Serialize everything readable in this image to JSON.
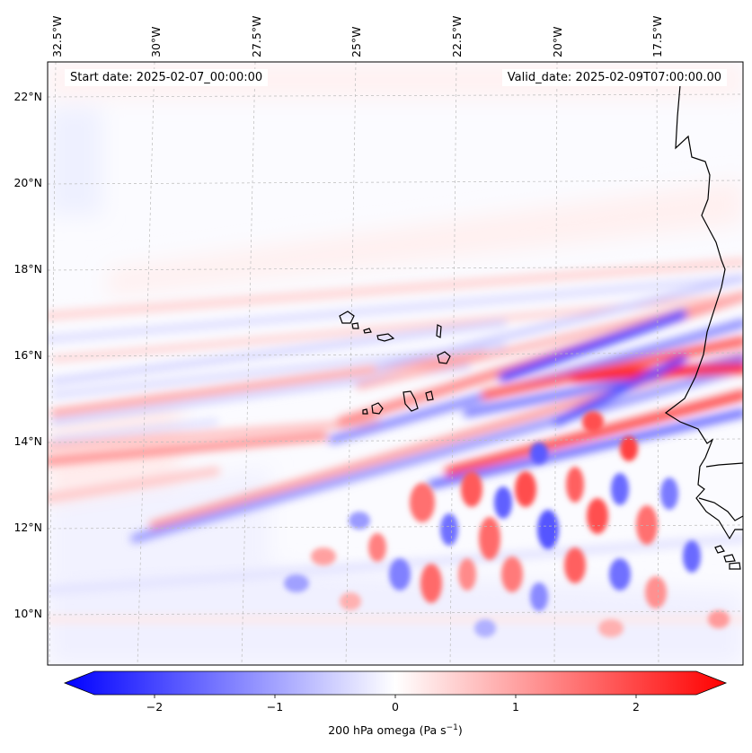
{
  "map": {
    "start_date": "Start date: 2025-02-07_00:00:00",
    "valid_date": "Valid_date: 2025-02-09T07:00:00.00",
    "lon_labels": [
      "32.5°W",
      "30°W",
      "27.5°W",
      "25°W",
      "22.5°W",
      "20°W",
      "17.5°W"
    ],
    "lat_labels": [
      "22°N",
      "20°N",
      "18°N",
      "16°N",
      "14°N",
      "12°N",
      "10°N"
    ],
    "colorbar": {
      "ticks": [
        "−2",
        "−1",
        "0",
        "1",
        "2"
      ],
      "label_text": "200 hPa omega (Pa s",
      "label_sup": "−1",
      "label_close": ")",
      "range": [
        -2.5,
        2.5
      ],
      "negative_color": "#0000ff",
      "positive_color": "#ff0000"
    }
  },
  "chart_data": {
    "type": "heatmap",
    "variable": "200 hPa omega",
    "units": "Pa s^-1",
    "color_range": [
      -2.5,
      2.5
    ],
    "colormap": "bwr",
    "lon_range": [
      -32.7,
      -15.1
    ],
    "lat_range": [
      8.9,
      22.8
    ],
    "gridlines": true
  }
}
